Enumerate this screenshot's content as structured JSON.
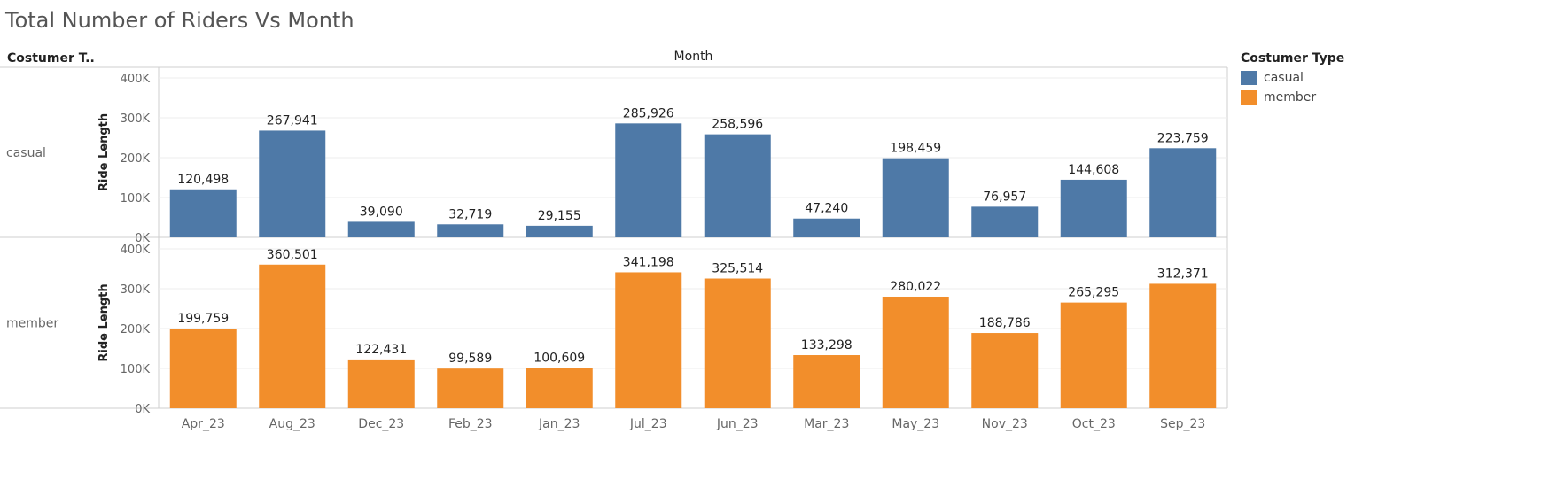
{
  "title": "Total Number of Riders Vs Month",
  "row_header": "Costumer T..",
  "column_header": "Month",
  "legend": {
    "title": "Costumer Type",
    "items": [
      {
        "label": "casual",
        "color": "#4e79a7"
      },
      {
        "label": "member",
        "color": "#f28e2b"
      }
    ]
  },
  "chart_data": {
    "type": "bar",
    "title": "Total Number of Riders Vs Month",
    "xlabel": "Month",
    "ylabel": "Ride Length",
    "ylim": [
      0,
      400000
    ],
    "yticks": [
      "0K",
      "100K",
      "200K",
      "300K",
      "400K"
    ],
    "categories": [
      "Apr_23",
      "Aug_23",
      "Dec_23",
      "Feb_23",
      "Jan_23",
      "Jul_23",
      "Jun_23",
      "Mar_23",
      "May_23",
      "Nov_23",
      "Oct_23",
      "Sep_23"
    ],
    "series": [
      {
        "name": "casual",
        "color": "#4e79a7",
        "values": [
          120498,
          267941,
          39090,
          32719,
          29155,
          285926,
          258596,
          47240,
          198459,
          76957,
          144608,
          223759
        ],
        "labels": [
          "120,498",
          "267,941",
          "39,090",
          "32,719",
          "29,155",
          "285,926",
          "258,596",
          "47,240",
          "198,459",
          "76,957",
          "144,608",
          "223,759"
        ]
      },
      {
        "name": "member",
        "color": "#f28e2b",
        "values": [
          199759,
          360501,
          122431,
          99589,
          100609,
          341198,
          325514,
          133298,
          280022,
          188786,
          265295,
          312371
        ],
        "labels": [
          "199,759",
          "360,501",
          "122,431",
          "99,589",
          "100,609",
          "341,198",
          "325,514",
          "133,298",
          "280,022",
          "188,786",
          "265,295",
          "312,371"
        ]
      }
    ],
    "grid": true,
    "legend_position": "right"
  }
}
